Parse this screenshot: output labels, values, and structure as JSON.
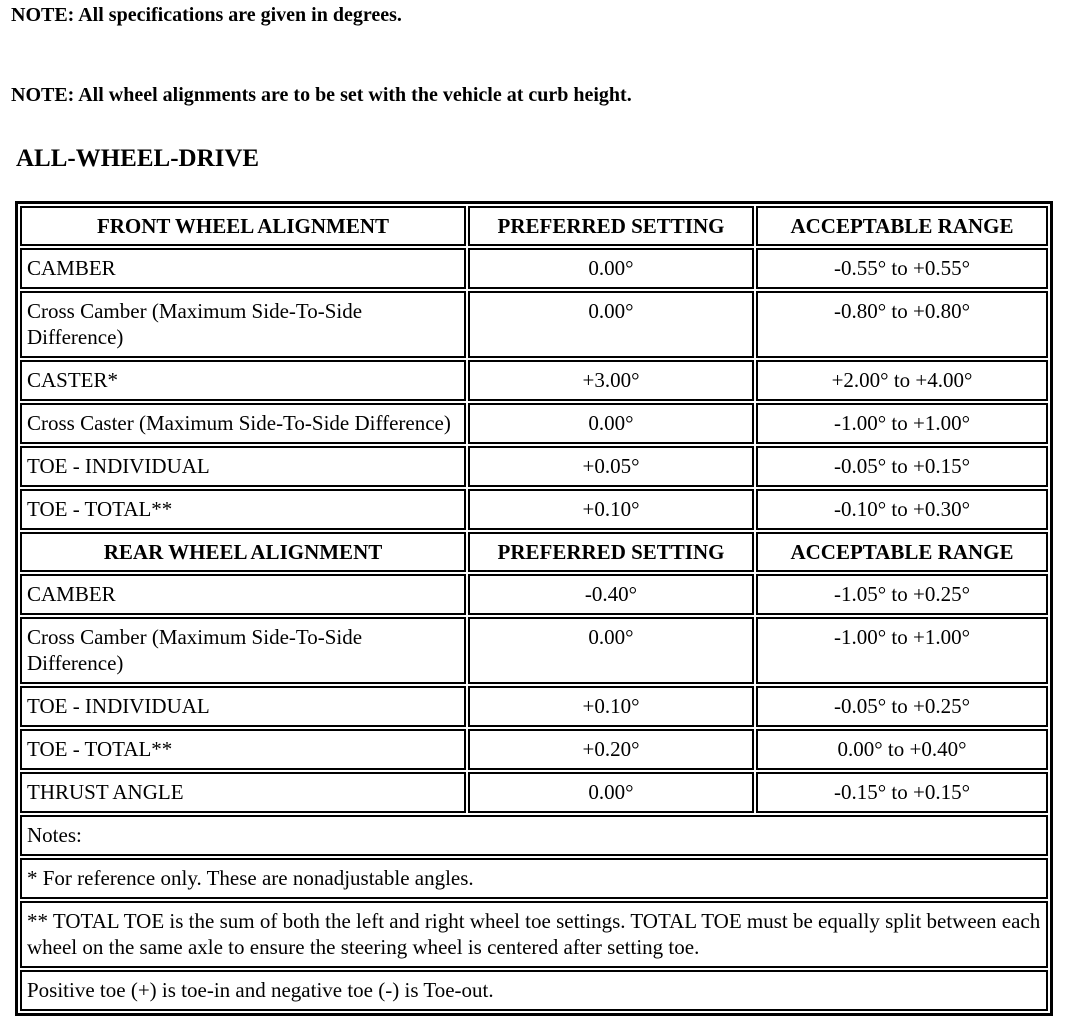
{
  "notes": [
    "NOTE:  All specifications are given in degrees.",
    "NOTE:  All wheel alignments are to be set with the vehicle at curb height."
  ],
  "title": "ALL-WHEEL-DRIVE",
  "front": {
    "headers": [
      "FRONT WHEEL ALIGNMENT",
      "PREFERRED SETTING",
      "ACCEPTABLE RANGE"
    ],
    "rows": [
      [
        "CAMBER",
        "0.00°",
        "-0.55° to +0.55°"
      ],
      [
        "Cross Camber (Maximum Side-To-Side Difference)",
        "0.00°",
        "-0.80° to +0.80°"
      ],
      [
        "CASTER*",
        "+3.00°",
        "+2.00° to +4.00°"
      ],
      [
        "Cross Caster (Maximum Side-To-Side Difference)",
        "0.00°",
        "-1.00° to +1.00°"
      ],
      [
        "TOE - INDIVIDUAL",
        "+0.05°",
        "-0.05° to +0.15°"
      ],
      [
        "TOE - TOTAL**",
        "+0.10°",
        "-0.10° to +0.30°"
      ]
    ]
  },
  "rear": {
    "headers": [
      "REAR WHEEL ALIGNMENT",
      "PREFERRED SETTING",
      "ACCEPTABLE RANGE"
    ],
    "rows": [
      [
        "CAMBER",
        "-0.40°",
        "-1.05° to +0.25°"
      ],
      [
        "Cross Camber (Maximum Side-To-Side Difference)",
        "0.00°",
        "-1.00° to +1.00°"
      ],
      [
        "TOE - INDIVIDUAL",
        "+0.10°",
        "-0.05° to +0.25°"
      ],
      [
        "TOE - TOTAL**",
        "+0.20°",
        "0.00° to +0.40°"
      ],
      [
        "THRUST ANGLE",
        "0.00°",
        "-0.15° to +0.15°"
      ]
    ]
  },
  "footnotes": [
    "Notes:",
    "* For reference only. These are nonadjustable angles.",
    "** TOTAL TOE is the sum of both the left and right wheel toe settings. TOTAL TOE must be equally split between each wheel on the same axle to ensure the steering wheel is centered after setting toe.",
    "Positive toe (+) is toe-in and negative toe (-) is Toe-out."
  ]
}
